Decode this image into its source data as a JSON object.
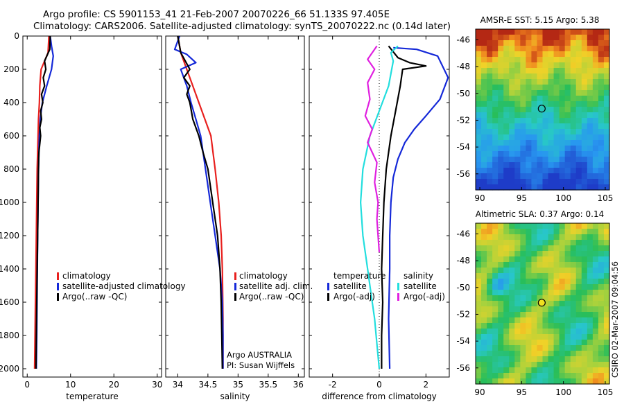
{
  "header": {
    "title_line1": "Argo profile: CS 5901153_41 21-Feb-2007 20070226_66 51.133S 97.405E",
    "title_line2": "Climatology: CARS2006. Satellite-adjusted climatology: synTS_20070222.nc (0.14d later)"
  },
  "stamp": "CSIRO 02-Mar-2007 09:04:56",
  "colors": {
    "climatology": "#e8201e",
    "satellite": "#1428d8",
    "argo": "#000000",
    "satellite_salinity": "#22dede",
    "argo_salinity_adj": "#e020e0"
  },
  "chart_data": [
    {
      "type": "line",
      "name": "temperature-profile",
      "xlabel": "temperature",
      "ylabel": "",
      "xlim": [
        -1,
        31
      ],
      "ylim": [
        2050,
        0
      ],
      "y_reversed": true,
      "xticks": [
        "0",
        "10",
        "20",
        "30"
      ],
      "xtick_values": [
        0,
        10,
        20,
        30
      ],
      "yticks": [
        "0",
        "200",
        "400",
        "600",
        "800",
        "1000",
        "1200",
        "1400",
        "1600",
        "1800",
        "2000"
      ],
      "ytick_values": [
        0,
        200,
        400,
        600,
        800,
        1000,
        1200,
        1400,
        1600,
        1800,
        2000
      ],
      "legend": [
        "climatology",
        "satellite-adjusted climatology",
        "Argo(..raw -QC)"
      ],
      "legend_placement": "lower-right",
      "series": [
        {
          "name": "climatology",
          "color": "#e8201e",
          "x": [
            5.0,
            4.8,
            3.2,
            2.9,
            2.8,
            2.6,
            2.5,
            2.3,
            2.2,
            2.1,
            2.0,
            1.9,
            1.8,
            1.7
          ],
          "y": [
            0,
            100,
            200,
            300,
            400,
            500,
            600,
            800,
            1000,
            1200,
            1400,
            1600,
            1800,
            2000
          ]
        },
        {
          "name": "satellite-adjusted climatology",
          "color": "#1428d8",
          "x": [
            5.3,
            5.6,
            6.0,
            5.6,
            4.5,
            3.5,
            3.0,
            2.8,
            2.6,
            2.5,
            2.4,
            2.3,
            2.2,
            2.1
          ],
          "y": [
            0,
            60,
            120,
            200,
            300,
            400,
            500,
            600,
            800,
            1000,
            1200,
            1500,
            1800,
            2000
          ]
        },
        {
          "name": "Argo(..raw -QC)",
          "color": "#000000",
          "x": [
            5.3,
            5.2,
            4.0,
            4.3,
            3.7,
            4.0,
            3.3,
            3.6,
            3.1,
            3.3,
            2.9,
            3.1,
            2.7,
            2.6,
            2.5,
            2.4,
            2.3,
            2.2,
            2.1,
            2.0
          ],
          "y": [
            0,
            80,
            150,
            200,
            250,
            300,
            350,
            400,
            450,
            500,
            550,
            600,
            700,
            800,
            1000,
            1200,
            1400,
            1600,
            1800,
            2000
          ]
        }
      ],
      "annotations": []
    },
    {
      "type": "line",
      "name": "salinity-profile",
      "xlabel": "salinity",
      "ylabel": "",
      "xlim": [
        33.8,
        36.1
      ],
      "ylim": [
        2050,
        0
      ],
      "y_reversed": true,
      "xticks": [
        "34",
        "34.5",
        "35",
        "35.5",
        "36"
      ],
      "xtick_values": [
        34,
        34.5,
        35,
        35.5,
        36
      ],
      "yticks": [],
      "ytick_values": [],
      "legend": [
        "climatology",
        "satellite adj. clim.",
        "Argo(..raw -QC)"
      ],
      "legend_placement": "lower-right",
      "series": [
        {
          "name": "climatology",
          "color": "#e8201e",
          "x": [
            34.0,
            34.05,
            34.15,
            34.25,
            34.35,
            34.45,
            34.55,
            34.62,
            34.68,
            34.72,
            34.74,
            34.75,
            34.75
          ],
          "y": [
            0,
            100,
            200,
            300,
            400,
            500,
            600,
            800,
            1000,
            1200,
            1400,
            1700,
            2000
          ]
        },
        {
          "name": "satellite adj. clim.",
          "color": "#1428d8",
          "x": [
            34.03,
            33.95,
            34.15,
            34.3,
            34.05,
            34.15,
            34.22,
            34.3,
            34.38,
            34.46,
            34.54,
            34.62,
            34.7,
            34.74,
            34.75,
            34.75
          ],
          "y": [
            0,
            80,
            110,
            160,
            200,
            300,
            400,
            500,
            600,
            800,
            1000,
            1200,
            1400,
            1600,
            1800,
            2000
          ]
        },
        {
          "name": "Argo(..raw -QC)",
          "color": "#000000",
          "x": [
            34.0,
            34.05,
            34.2,
            34.1,
            34.2,
            34.15,
            34.2,
            34.25,
            34.35,
            34.42,
            34.5,
            34.58,
            34.66,
            34.7,
            34.72,
            34.73,
            34.74
          ],
          "y": [
            0,
            100,
            200,
            250,
            300,
            350,
            400,
            500,
            600,
            700,
            800,
            1000,
            1200,
            1400,
            1600,
            1800,
            2000
          ]
        }
      ],
      "annotations": [
        "Argo AUSTRALIA",
        "PI: Susan Wijffels"
      ]
    },
    {
      "type": "line",
      "name": "difference-from-climatology",
      "xlabel": "difference from climatology",
      "ylabel": "",
      "xlim": [
        -3,
        3
      ],
      "ylim": [
        2050,
        0
      ],
      "y_reversed": true,
      "xticks": [
        "-2",
        "0",
        "2"
      ],
      "xtick_values": [
        -2,
        0,
        2
      ],
      "yticks": [],
      "ytick_values": [],
      "legend_groups": [
        {
          "heading": "temperature",
          "items": [
            "satellite",
            "Argo(-adj)"
          ]
        },
        {
          "heading": "salinity",
          "items": [
            "satellite",
            "Argo(-adj)"
          ]
        }
      ],
      "legend_placement": "lower-center",
      "series": [
        {
          "name": "temperature satellite",
          "color": "#1428d8",
          "x": [
            0.6,
            1.6,
            2.5,
            2.95,
            2.6,
            2.0,
            1.5,
            1.1,
            0.8,
            0.6,
            0.5,
            0.45,
            0.45,
            0.4,
            0.45
          ],
          "y": [
            70,
            80,
            120,
            250,
            380,
            480,
            560,
            640,
            740,
            850,
            1000,
            1200,
            1400,
            1700,
            2000
          ]
        },
        {
          "name": "temperature Argo(-adj)",
          "color": "#000000",
          "x": [
            0.4,
            0.8,
            1.3,
            2.0,
            1.0,
            0.9,
            0.7,
            0.5,
            0.3,
            0.2,
            0.15,
            0.1,
            0.15,
            0.1,
            0.1
          ],
          "y": [
            60,
            130,
            160,
            180,
            200,
            300,
            450,
            600,
            800,
            1000,
            1200,
            1400,
            1600,
            1800,
            2000
          ]
        },
        {
          "name": "salinity satellite",
          "color": "#22dede",
          "x": [
            0.8,
            0.5,
            0.6,
            0.4,
            0.0,
            -0.4,
            -0.7,
            -0.8,
            -0.7,
            -0.5,
            -0.4,
            -0.3,
            -0.2,
            -0.1,
            0.0
          ],
          "y": [
            60,
            100,
            150,
            300,
            450,
            600,
            800,
            1000,
            1200,
            1400,
            1500,
            1600,
            1700,
            1850,
            2000
          ]
        },
        {
          "name": "salinity Argo(-adj)",
          "color": "#e020e0",
          "x": [
            -0.1,
            -0.3,
            -0.5,
            -0.2,
            -0.5,
            -0.4,
            -0.6,
            -0.3,
            -0.5,
            -0.1,
            -0.2,
            -0.05,
            -0.1,
            -0.05,
            0.0
          ],
          "y": [
            60,
            100,
            140,
            200,
            280,
            380,
            480,
            560,
            640,
            760,
            880,
            1000,
            1100,
            1200,
            1300
          ]
        }
      ],
      "annotations": []
    },
    {
      "type": "heatmap",
      "name": "amsr-e-sst-map",
      "title": "AMSR-E SST: 5.15 Argo: 5.38",
      "xlim": [
        89.5,
        105.5
      ],
      "ylim": [
        -57.2,
        -45.2
      ],
      "xticks": [
        "90",
        "95",
        "100",
        "105"
      ],
      "xtick_values": [
        90,
        95,
        100,
        105
      ],
      "yticks": [
        "-46",
        "-48",
        "-50",
        "-52",
        "-54",
        "-56"
      ],
      "ytick_values": [
        -46,
        -48,
        -50,
        -52,
        -54,
        -56
      ],
      "marker": {
        "lon": 97.405,
        "lat": -51.133
      }
    },
    {
      "type": "heatmap",
      "name": "altimetric-sla-map",
      "title": "Altimetric SLA: 0.37 Argo: 0.14",
      "xlim": [
        89.5,
        105.5
      ],
      "ylim": [
        -57.2,
        -45.2
      ],
      "xticks": [
        "90",
        "95",
        "100",
        "105"
      ],
      "xtick_values": [
        90,
        95,
        100,
        105
      ],
      "yticks": [
        "-46",
        "-48",
        "-50",
        "-52",
        "-54",
        "-56"
      ],
      "ytick_values": [
        -46,
        -48,
        -50,
        -52,
        -54,
        -56
      ],
      "marker": {
        "lon": 97.405,
        "lat": -51.133
      }
    }
  ]
}
